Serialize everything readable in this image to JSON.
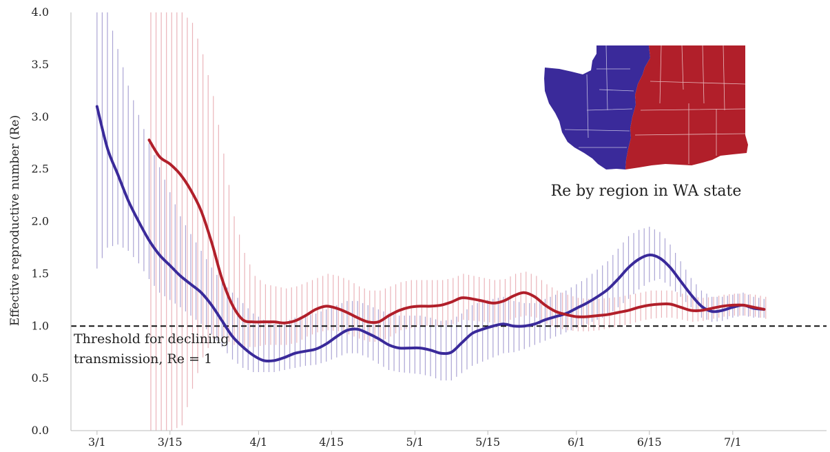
{
  "chart_data": {
    "type": "line",
    "title": "",
    "xlabel": "",
    "ylabel": "Effective reproductive number (Re)",
    "ylim": [
      0.0,
      4.0
    ],
    "y_ticks": [
      "0.0",
      "0.5",
      "1.0",
      "1.5",
      "2.0",
      "2.5",
      "3.0",
      "3.5",
      "4.0"
    ],
    "x_ticks": [
      {
        "day": 0,
        "label": "3/1"
      },
      {
        "day": 14,
        "label": "3/15"
      },
      {
        "day": 31,
        "label": "4/1"
      },
      {
        "day": 45,
        "label": "4/15"
      },
      {
        "day": 61,
        "label": "5/1"
      },
      {
        "day": 75,
        "label": "5/15"
      },
      {
        "day": 92,
        "label": "6/1"
      },
      {
        "day": 106,
        "label": "6/15"
      },
      {
        "day": 122,
        "label": "7/1"
      }
    ],
    "x_range_days": [
      -5,
      140
    ],
    "threshold": {
      "value": 1.0,
      "label_line1": "Threshold for declining",
      "label_line2": "transmission, Re = 1"
    },
    "inset": {
      "caption": "Re by region in WA state",
      "regions": [
        {
          "name": "western",
          "color": "#3a2a9a"
        },
        {
          "name": "eastern",
          "color": "#b11f2a"
        }
      ]
    },
    "grid": false,
    "series": [
      {
        "color": "#3a2a9a",
        "band_color": "#8f86c6",
        "x": [
          0,
          2,
          4,
          6,
          8,
          10,
          12,
          14,
          16,
          18,
          20,
          22,
          24,
          26,
          28,
          30,
          32,
          34,
          36,
          38,
          40,
          42,
          44,
          46,
          48,
          50,
          52,
          54,
          56,
          58,
          60,
          62,
          64,
          66,
          68,
          70,
          72,
          74,
          76,
          78,
          80,
          82,
          84,
          86,
          88,
          90,
          92,
          94,
          96,
          98,
          100,
          102,
          104,
          106,
          108,
          110,
          112,
          114,
          116,
          118,
          120,
          122,
          124,
          126,
          128
        ],
        "y": [
          3.1,
          2.7,
          2.45,
          2.2,
          2.0,
          1.82,
          1.68,
          1.58,
          1.48,
          1.4,
          1.32,
          1.2,
          1.05,
          0.9,
          0.8,
          0.72,
          0.67,
          0.67,
          0.7,
          0.74,
          0.76,
          0.78,
          0.83,
          0.9,
          0.96,
          0.97,
          0.93,
          0.88,
          0.82,
          0.79,
          0.79,
          0.79,
          0.77,
          0.74,
          0.75,
          0.84,
          0.93,
          0.97,
          1.0,
          1.02,
          1.0,
          1.0,
          1.02,
          1.06,
          1.09,
          1.12,
          1.17,
          1.22,
          1.28,
          1.35,
          1.45,
          1.56,
          1.64,
          1.68,
          1.65,
          1.56,
          1.43,
          1.3,
          1.19,
          1.14,
          1.15,
          1.18,
          1.2,
          1.17,
          1.16
        ],
        "lower": [
          1.55,
          1.75,
          1.78,
          1.72,
          1.6,
          1.45,
          1.32,
          1.25,
          1.18,
          1.1,
          1.02,
          0.92,
          0.8,
          0.68,
          0.6,
          0.56,
          0.56,
          0.56,
          0.58,
          0.6,
          0.62,
          0.63,
          0.66,
          0.7,
          0.74,
          0.74,
          0.7,
          0.64,
          0.58,
          0.56,
          0.55,
          0.54,
          0.52,
          0.48,
          0.48,
          0.55,
          0.62,
          0.66,
          0.7,
          0.74,
          0.75,
          0.78,
          0.82,
          0.86,
          0.9,
          0.94,
          0.98,
          1.02,
          1.06,
          1.1,
          1.18,
          1.26,
          1.35,
          1.42,
          1.45,
          1.38,
          1.28,
          1.18,
          1.08,
          1.04,
          1.05,
          1.08,
          1.1,
          1.08,
          1.08
        ],
        "upper": [
          4.0,
          4.0,
          3.65,
          3.3,
          3.02,
          2.75,
          2.52,
          2.28,
          2.05,
          1.88,
          1.72,
          1.56,
          1.42,
          1.32,
          1.22,
          1.12,
          1.06,
          1.02,
          1.04,
          1.08,
          1.1,
          1.12,
          1.16,
          1.2,
          1.24,
          1.24,
          1.2,
          1.16,
          1.12,
          1.1,
          1.1,
          1.1,
          1.08,
          1.05,
          1.06,
          1.12,
          1.2,
          1.24,
          1.26,
          1.28,
          1.24,
          1.22,
          1.22,
          1.26,
          1.3,
          1.34,
          1.4,
          1.46,
          1.54,
          1.62,
          1.74,
          1.86,
          1.92,
          1.95,
          1.9,
          1.78,
          1.62,
          1.46,
          1.34,
          1.28,
          1.28,
          1.3,
          1.32,
          1.28,
          1.26
        ]
      },
      {
        "color": "#b11f2a",
        "band_color": "#e39aa2",
        "x": [
          10,
          12,
          14,
          16,
          18,
          20,
          22,
          24,
          26,
          28,
          30,
          32,
          34,
          36,
          38,
          40,
          42,
          44,
          46,
          48,
          50,
          52,
          54,
          56,
          58,
          60,
          62,
          64,
          66,
          68,
          70,
          72,
          74,
          76,
          78,
          80,
          82,
          84,
          86,
          88,
          90,
          92,
          94,
          96,
          98,
          100,
          102,
          104,
          106,
          108,
          110,
          112,
          114,
          116,
          118,
          120,
          122,
          124,
          126,
          128
        ],
        "y": [
          2.78,
          2.62,
          2.55,
          2.45,
          2.3,
          2.1,
          1.8,
          1.45,
          1.2,
          1.06,
          1.04,
          1.04,
          1.04,
          1.03,
          1.05,
          1.1,
          1.16,
          1.19,
          1.17,
          1.13,
          1.08,
          1.04,
          1.04,
          1.1,
          1.15,
          1.18,
          1.19,
          1.19,
          1.2,
          1.23,
          1.27,
          1.26,
          1.24,
          1.22,
          1.24,
          1.29,
          1.32,
          1.28,
          1.2,
          1.14,
          1.11,
          1.09,
          1.09,
          1.1,
          1.11,
          1.13,
          1.15,
          1.18,
          1.2,
          1.21,
          1.21,
          1.18,
          1.15,
          1.15,
          1.17,
          1.19,
          1.2,
          1.2,
          1.18,
          1.16
        ],
        "lower": [
          0.0,
          0.0,
          0.0,
          0.05,
          0.4,
          0.7,
          0.88,
          0.88,
          0.82,
          0.8,
          0.8,
          0.82,
          0.82,
          0.82,
          0.84,
          0.9,
          0.94,
          0.96,
          0.95,
          0.92,
          0.88,
          0.85,
          0.85,
          0.9,
          0.96,
          0.98,
          1.0,
          1.0,
          1.0,
          1.02,
          1.06,
          1.05,
          1.04,
          1.03,
          1.04,
          1.08,
          1.1,
          1.08,
          1.02,
          0.98,
          0.96,
          0.95,
          0.95,
          0.96,
          0.98,
          1.0,
          1.02,
          1.05,
          1.07,
          1.08,
          1.08,
          1.06,
          1.04,
          1.05,
          1.07,
          1.09,
          1.1,
          1.1,
          1.09,
          1.07
        ],
        "upper": [
          4.0,
          4.0,
          4.0,
          4.0,
          3.9,
          3.6,
          3.2,
          2.65,
          2.05,
          1.7,
          1.48,
          1.4,
          1.38,
          1.36,
          1.38,
          1.42,
          1.46,
          1.5,
          1.48,
          1.44,
          1.38,
          1.34,
          1.34,
          1.38,
          1.42,
          1.44,
          1.44,
          1.44,
          1.44,
          1.46,
          1.5,
          1.48,
          1.46,
          1.44,
          1.45,
          1.5,
          1.52,
          1.48,
          1.4,
          1.34,
          1.3,
          1.27,
          1.26,
          1.26,
          1.27,
          1.28,
          1.3,
          1.32,
          1.34,
          1.34,
          1.34,
          1.31,
          1.28,
          1.27,
          1.28,
          1.3,
          1.31,
          1.31,
          1.3,
          1.28
        ]
      }
    ]
  }
}
